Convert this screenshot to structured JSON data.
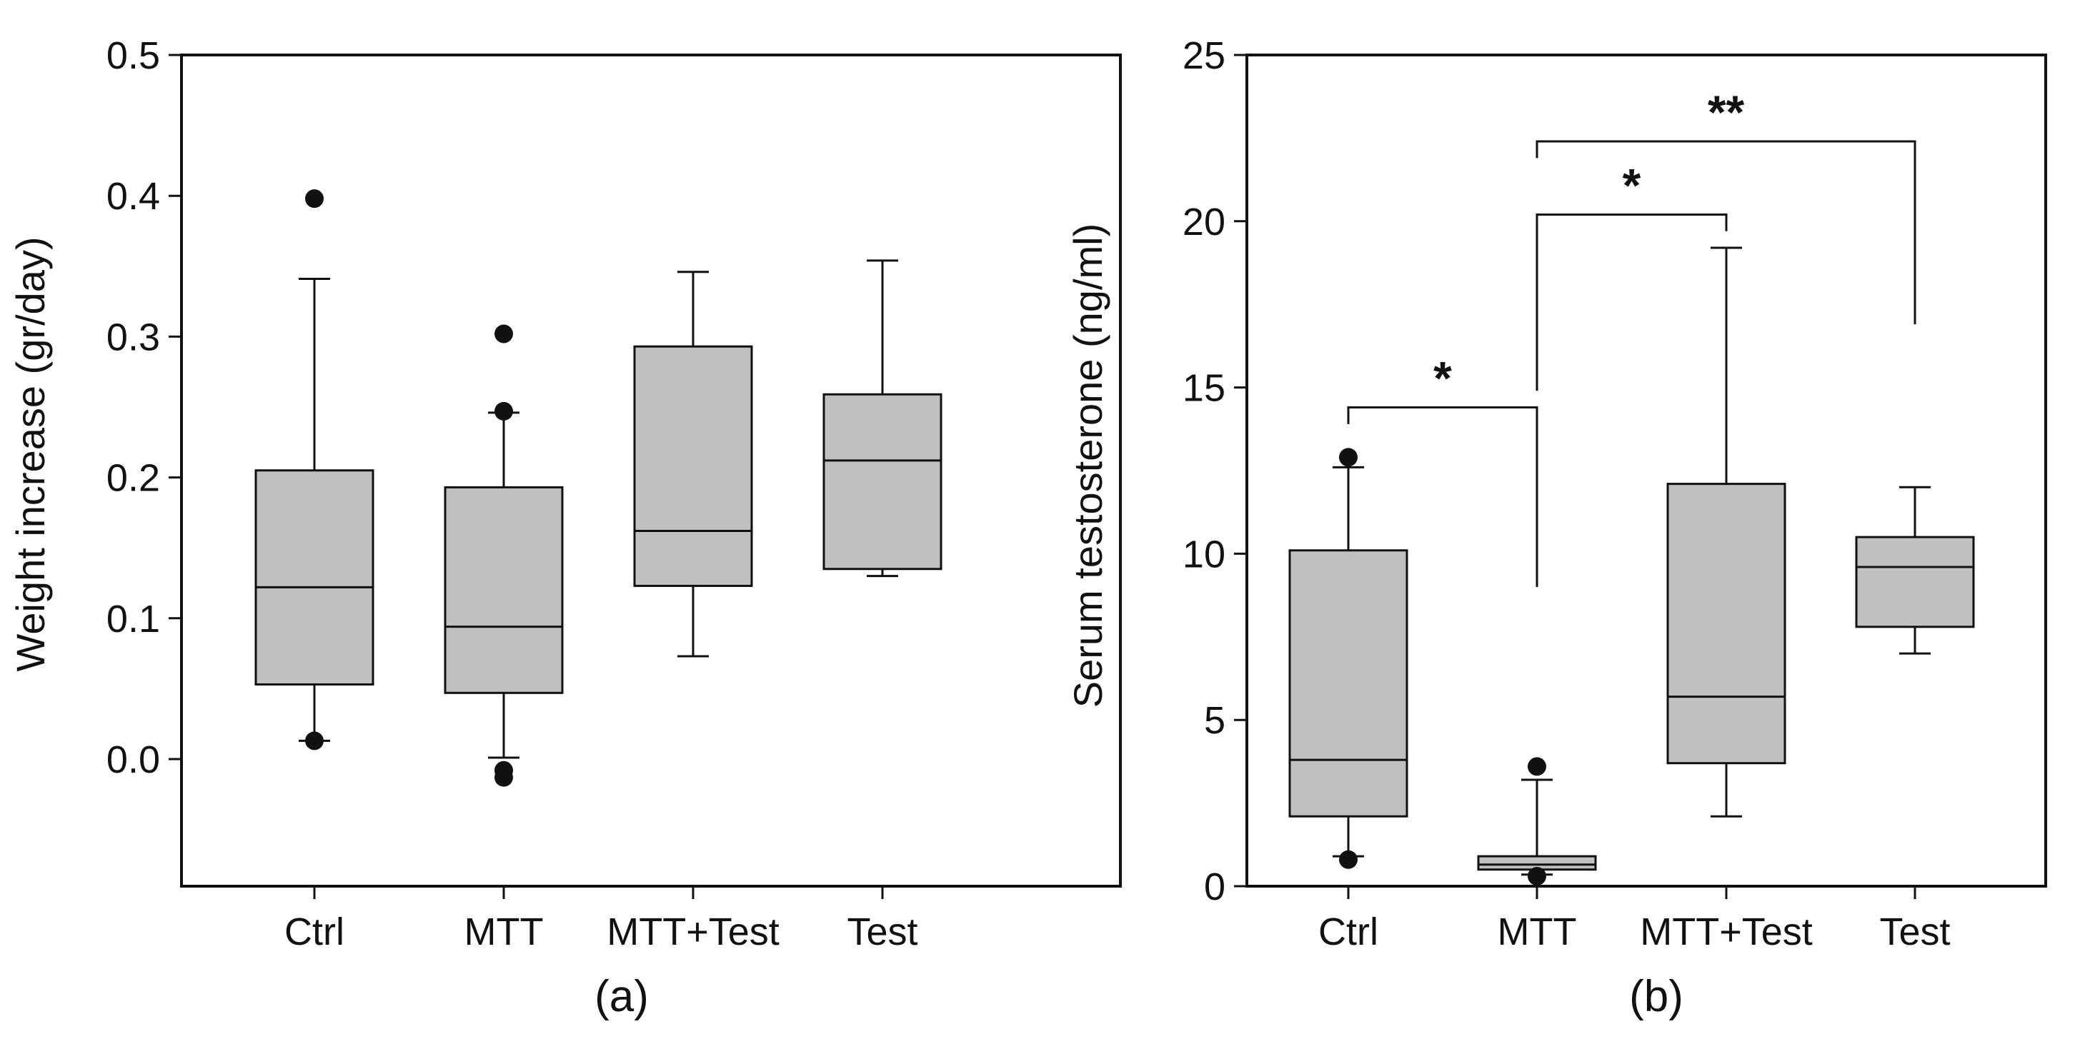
{
  "chart_data": [
    {
      "panel_label": "(a)",
      "type": "box",
      "ylabel": "Weight increase (gr/day)",
      "ylim": [
        -0.09,
        0.5
      ],
      "yticks": [
        0.0,
        0.1,
        0.2,
        0.3,
        0.4,
        0.5
      ],
      "ytick_labels": [
        "0.0",
        "0.1",
        "0.2",
        "0.3",
        "0.4",
        "0.5"
      ],
      "categories": [
        "Ctrl",
        "MTT",
        "MTT+Test",
        "Test"
      ],
      "boxes": [
        {
          "category": "Ctrl",
          "whisker_low": 0.013,
          "q1": 0.053,
          "median": 0.122,
          "q3": 0.205,
          "whisker_high": 0.341,
          "outliers": [
            0.013,
            0.398
          ]
        },
        {
          "category": "MTT",
          "whisker_low": 0.001,
          "q1": 0.047,
          "median": 0.094,
          "q3": 0.193,
          "whisker_high": 0.246,
          "outliers": [
            0.247,
            0.302,
            -0.008,
            -0.013
          ]
        },
        {
          "category": "MTT+Test",
          "whisker_low": 0.073,
          "q1": 0.123,
          "median": 0.162,
          "q3": 0.293,
          "whisker_high": 0.346,
          "outliers": []
        },
        {
          "category": "Test",
          "whisker_low": 0.13,
          "q1": 0.135,
          "median": 0.212,
          "q3": 0.259,
          "whisker_high": 0.354,
          "outliers": []
        }
      ],
      "box_color": "#c0c0c0",
      "grid": false
    },
    {
      "panel_label": "(b)",
      "type": "box",
      "ylabel": "Serum testosterone (ng/ml)",
      "ylim": [
        0,
        25
      ],
      "yticks": [
        0,
        5,
        10,
        15,
        20,
        25
      ],
      "ytick_labels": [
        "0",
        "5",
        "10",
        "15",
        "20",
        "25"
      ],
      "categories": [
        "Ctrl",
        "MTT",
        "MTT+Test",
        "Test"
      ],
      "boxes": [
        {
          "category": "Ctrl",
          "whisker_low": 0.9,
          "q1": 2.1,
          "median": 3.8,
          "q3": 10.1,
          "whisker_high": 12.6,
          "outliers": [
            0.8,
            12.9
          ]
        },
        {
          "category": "MTT",
          "whisker_low": 0.35,
          "q1": 0.5,
          "median": 0.65,
          "q3": 0.9,
          "whisker_high": 3.2,
          "outliers": [
            0.3,
            3.6
          ]
        },
        {
          "category": "MTT+Test",
          "whisker_low": 2.1,
          "q1": 3.7,
          "median": 5.7,
          "q3": 12.1,
          "whisker_high": 19.2,
          "outliers": []
        },
        {
          "category": "Test",
          "whisker_low": 7.0,
          "q1": 7.8,
          "median": 9.6,
          "q3": 10.5,
          "whisker_high": 12.0,
          "outliers": []
        }
      ],
      "significance": [
        {
          "from": "Ctrl",
          "to": "MTT",
          "label": "*",
          "level": 14.4,
          "drop_from": 13.9,
          "drop_to": 9.0
        },
        {
          "from": "MTT",
          "to": "MTT+Test",
          "label": "*",
          "level": 20.2,
          "drop_from": 14.9,
          "drop_to": 19.7
        },
        {
          "from": "MTT",
          "to": "Test",
          "label": "**",
          "level": 22.4,
          "drop_from": 21.9,
          "drop_to": 16.9
        }
      ],
      "box_color": "#c0c0c0",
      "grid": false
    }
  ]
}
